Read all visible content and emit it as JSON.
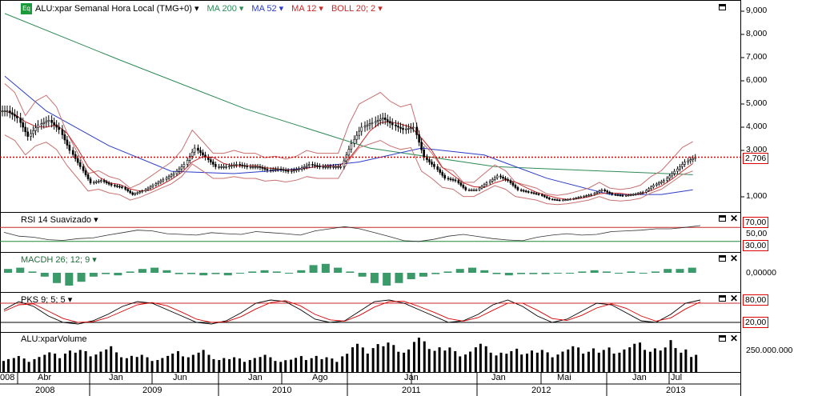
{
  "header": {
    "symbol_badge": "Eq",
    "title": "ALU:xpar Semanal Hora Local (TMG+0)",
    "indicators": [
      {
        "label": "MA 200",
        "color": "#2e8b57"
      },
      {
        "label": "MA 52",
        "color": "#2a3cc8"
      },
      {
        "label": "MA 12",
        "color": "#c82828"
      },
      {
        "label": "BOLL 20; 2",
        "color": "#c82828"
      }
    ]
  },
  "chart_data": [
    {
      "type": "candlestick",
      "panel": "price",
      "title": "ALU:xpar Semanal Hora Local (TMG+0)",
      "y_ticks": [
        "9,000",
        "8,000",
        "7,000",
        "6,000",
        "5,000",
        "4,000",
        "3,000",
        "1,000"
      ],
      "ylim": [
        0,
        9300
      ],
      "last_price": 2706,
      "last_price_label": "2,706",
      "x_range": [
        "2008-02",
        "2013-08"
      ],
      "close_series": [
        {
          "t": "2008-02",
          "v": 4700
        },
        {
          "t": "2008-03",
          "v": 4400
        },
        {
          "t": "2008-04",
          "v": 3600
        },
        {
          "t": "2008-05",
          "v": 4100
        },
        {
          "t": "2008-06",
          "v": 4300
        },
        {
          "t": "2008-07",
          "v": 3900
        },
        {
          "t": "2008-08",
          "v": 3000
        },
        {
          "t": "2008-09",
          "v": 2300
        },
        {
          "t": "2008-10",
          "v": 1600
        },
        {
          "t": "2008-11",
          "v": 1700
        },
        {
          "t": "2008-12",
          "v": 1500
        },
        {
          "t": "2009-01",
          "v": 1400
        },
        {
          "t": "2009-02",
          "v": 1100
        },
        {
          "t": "2009-03",
          "v": 1250
        },
        {
          "t": "2009-04",
          "v": 1500
        },
        {
          "t": "2009-05",
          "v": 1750
        },
        {
          "t": "2009-06",
          "v": 2000
        },
        {
          "t": "2009-07",
          "v": 2400
        },
        {
          "t": "2009-08",
          "v": 3100
        },
        {
          "t": "2009-09",
          "v": 2700
        },
        {
          "t": "2009-10",
          "v": 2300
        },
        {
          "t": "2009-11",
          "v": 2300
        },
        {
          "t": "2009-12",
          "v": 2400
        },
        {
          "t": "2010-01",
          "v": 2300
        },
        {
          "t": "2010-02",
          "v": 2300
        },
        {
          "t": "2010-03",
          "v": 2150
        },
        {
          "t": "2010-04",
          "v": 2200
        },
        {
          "t": "2010-05",
          "v": 2100
        },
        {
          "t": "2010-06",
          "v": 2200
        },
        {
          "t": "2010-07",
          "v": 2400
        },
        {
          "t": "2010-08",
          "v": 2300
        },
        {
          "t": "2010-09",
          "v": 2300
        },
        {
          "t": "2010-10",
          "v": 2300
        },
        {
          "t": "2010-11",
          "v": 3300
        },
        {
          "t": "2010-12",
          "v": 4000
        },
        {
          "t": "2011-01",
          "v": 4200
        },
        {
          "t": "2011-02",
          "v": 4400
        },
        {
          "t": "2011-03",
          "v": 4100
        },
        {
          "t": "2011-04",
          "v": 3900
        },
        {
          "t": "2011-05",
          "v": 4000
        },
        {
          "t": "2011-06",
          "v": 2700
        },
        {
          "t": "2011-07",
          "v": 2300
        },
        {
          "t": "2011-08",
          "v": 1800
        },
        {
          "t": "2011-09",
          "v": 1700
        },
        {
          "t": "2011-10",
          "v": 1300
        },
        {
          "t": "2011-11",
          "v": 1300
        },
        {
          "t": "2011-12",
          "v": 1600
        },
        {
          "t": "2012-01",
          "v": 1900
        },
        {
          "t": "2012-02",
          "v": 1700
        },
        {
          "t": "2012-03",
          "v": 1300
        },
        {
          "t": "2012-04",
          "v": 1200
        },
        {
          "t": "2012-05",
          "v": 1100
        },
        {
          "t": "2012-06",
          "v": 900
        },
        {
          "t": "2012-07",
          "v": 850
        },
        {
          "t": "2012-08",
          "v": 900
        },
        {
          "t": "2012-09",
          "v": 1000
        },
        {
          "t": "2012-10",
          "v": 1100
        },
        {
          "t": "2012-11",
          "v": 1300
        },
        {
          "t": "2012-12",
          "v": 1100
        },
        {
          "t": "2013-01",
          "v": 1050
        },
        {
          "t": "2013-02",
          "v": 1100
        },
        {
          "t": "2013-03",
          "v": 1200
        },
        {
          "t": "2013-04",
          "v": 1500
        },
        {
          "t": "2013-05",
          "v": 1700
        },
        {
          "t": "2013-06",
          "v": 2100
        },
        {
          "t": "2013-07",
          "v": 2500
        },
        {
          "t": "2013-08",
          "v": 2706
        }
      ],
      "ma200": [
        {
          "t": "2008-02",
          "v": 8900
        },
        {
          "t": "2009-01",
          "v": 6900
        },
        {
          "t": "2010-01",
          "v": 4800
        },
        {
          "t": "2011-01",
          "v": 3100
        },
        {
          "t": "2012-01",
          "v": 2300
        },
        {
          "t": "2013-08",
          "v": 1950
        }
      ],
      "ma52": [
        {
          "t": "2008-02",
          "v": 6200
        },
        {
          "t": "2008-06",
          "v": 4700
        },
        {
          "t": "2008-12",
          "v": 3200
        },
        {
          "t": "2009-06",
          "v": 2100
        },
        {
          "t": "2009-12",
          "v": 2000
        },
        {
          "t": "2010-06",
          "v": 2200
        },
        {
          "t": "2010-12",
          "v": 2500
        },
        {
          "t": "2011-06",
          "v": 3100
        },
        {
          "t": "2011-12",
          "v": 2800
        },
        {
          "t": "2012-06",
          "v": 1800
        },
        {
          "t": "2012-12",
          "v": 1100
        },
        {
          "t": "2013-05",
          "v": 1100
        },
        {
          "t": "2013-08",
          "v": 1300
        }
      ]
    },
    {
      "type": "line",
      "panel": "rsi",
      "title": "RSI 14 Suavizado",
      "y_labels": [
        "70,00",
        "50,00",
        "30,00"
      ],
      "upper": 70,
      "lower": 30,
      "series": [
        {
          "values": [
            56,
            45,
            42,
            35,
            33,
            38,
            40,
            48,
            55,
            62,
            60,
            52,
            50,
            48,
            55,
            52,
            50,
            58,
            55,
            52,
            48,
            60,
            66,
            72,
            66,
            55,
            44,
            32,
            30,
            36,
            45,
            50,
            44,
            38,
            34,
            32,
            42,
            48,
            52,
            48,
            50,
            58,
            60,
            62,
            66,
            66,
            70,
            75
          ]
        }
      ]
    },
    {
      "type": "bar",
      "panel": "macd",
      "title": "MACDH 26; 12; 9",
      "y_labels": [
        "0,00000"
      ],
      "values": [
        3,
        4,
        1,
        -3,
        -8,
        -10,
        -7,
        -3,
        -1,
        -2,
        1,
        3,
        4,
        2,
        -1,
        -1,
        -2,
        -1,
        -2,
        0,
        1,
        2,
        1,
        0,
        2,
        6,
        7,
        4,
        1,
        -3,
        -8,
        -10,
        -8,
        -5,
        -3,
        -1,
        1,
        3,
        4,
        2,
        -1,
        -2,
        -1,
        -1,
        -1,
        0,
        0,
        1,
        2,
        1,
        0,
        1,
        0,
        1,
        3,
        3,
        4
      ]
    },
    {
      "type": "line",
      "panel": "stochastic",
      "title": "PKS 9; 5; 5",
      "y_labels": [
        "80,00",
        "20,00"
      ],
      "upper": 80,
      "lower": 20,
      "series": [
        {
          "color": "#000",
          "values": [
            60,
            85,
            70,
            40,
            20,
            15,
            25,
            45,
            70,
            85,
            80,
            60,
            40,
            20,
            15,
            25,
            50,
            80,
            90,
            85,
            60,
            30,
            20,
            25,
            55,
            85,
            90,
            80,
            60,
            40,
            20,
            25,
            45,
            75,
            90,
            70,
            40,
            20,
            30,
            55,
            80,
            75,
            50,
            25,
            20,
            45,
            80,
            90
          ]
        },
        {
          "color": "#d00",
          "values": [
            55,
            75,
            78,
            55,
            32,
            20,
            22,
            35,
            55,
            75,
            82,
            72,
            52,
            30,
            20,
            22,
            38,
            62,
            82,
            88,
            72,
            45,
            28,
            24,
            42,
            68,
            85,
            86,
            70,
            52,
            32,
            24,
            35,
            58,
            80,
            80,
            58,
            32,
            26,
            42,
            65,
            78,
            64,
            40,
            24,
            34,
            62,
            84
          ]
        }
      ]
    },
    {
      "type": "bar",
      "panel": "volume",
      "title": "ALU:xparVolume",
      "y_labels": [
        "250.000.000"
      ],
      "values": [
        120,
        130,
        110,
        140,
        160,
        150,
        200,
        180,
        170,
        190,
        210,
        160,
        150,
        140,
        120,
        130,
        150,
        170,
        160,
        180,
        140,
        130,
        120,
        110,
        130,
        140,
        120,
        110,
        115,
        130,
        150,
        120,
        110,
        170,
        230,
        200,
        260,
        240,
        220,
        210,
        280,
        250,
        230,
        200,
        170,
        190,
        230,
        210,
        180,
        170,
        190,
        200,
        180,
        160,
        190,
        210,
        200,
        220,
        180,
        200,
        210,
        230,
        240,
        220,
        200,
        260,
        210,
        140
      ]
    }
  ],
  "x_axis": {
    "months": [
      "008",
      "Abr",
      "Jan",
      "Jun",
      "Jan",
      "Ago",
      "Jan",
      "Jan",
      "Mai",
      "Jan",
      "Jul"
    ],
    "years": [
      "2008",
      "2009",
      "2010",
      "2011",
      "2012",
      "2013"
    ]
  }
}
